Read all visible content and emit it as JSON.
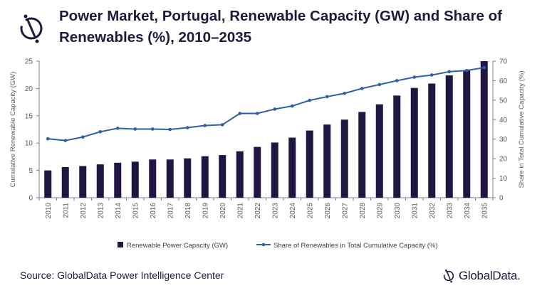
{
  "header": {
    "title": "Power Market, Portugal, Renewable Capacity (GW) and Share of Renewables (%), 2010–2035"
  },
  "footer": {
    "source": "Source: GlobalData Power Intelligence Center",
    "brand": "GlobalData."
  },
  "chart_data": {
    "type": "bar",
    "title": "Power Market, Portugal, Renewable Capacity (GW) and Share of Renewables (%), 2010–2035",
    "categories": [
      "2010",
      "2011",
      "2012",
      "2013",
      "2014",
      "2015",
      "2016",
      "2017",
      "2018",
      "2019",
      "2020",
      "2021",
      "2022",
      "2023",
      "2024",
      "2025",
      "2026",
      "2027",
      "2028",
      "2029",
      "2030",
      "2031",
      "2032",
      "2033",
      "2034",
      "2035"
    ],
    "ylabel": "Cumulative  Renewable Capacity (GW)",
    "y2label": "Share in Total Cumulative Capacity (%)",
    "ylim": [
      0,
      25
    ],
    "y2lim": [
      0,
      70
    ],
    "yticks": [
      0,
      5,
      10,
      15,
      20,
      25
    ],
    "y2ticks": [
      0,
      10,
      20,
      30,
      40,
      50,
      60,
      70
    ],
    "grid": false,
    "legend_position": "bottom",
    "series": [
      {
        "name": "Renewable Power Capacity (GW)",
        "type": "bar",
        "axis": "left",
        "color": "#211542",
        "values": [
          5.0,
          5.6,
          5.8,
          6.1,
          6.4,
          6.6,
          7.0,
          7.0,
          7.2,
          7.6,
          7.8,
          8.5,
          9.3,
          10.1,
          11.0,
          12.3,
          13.4,
          14.3,
          15.7,
          17.1,
          18.7,
          20.1,
          20.9,
          22.4,
          23.3,
          25.0
        ]
      },
      {
        "name": "Share of Renewables in Total Cumulative Capacity (%)",
        "type": "line",
        "axis": "right",
        "color": "#2e5ea8",
        "values": [
          30.2,
          29.3,
          31.1,
          33.8,
          35.6,
          35.2,
          35.2,
          35.0,
          35.9,
          37.0,
          37.4,
          43.2,
          43.2,
          45.4,
          47.0,
          49.9,
          51.8,
          53.5,
          56.0,
          58.0,
          60.0,
          61.8,
          62.9,
          64.6,
          65.2,
          66.7
        ]
      }
    ]
  }
}
